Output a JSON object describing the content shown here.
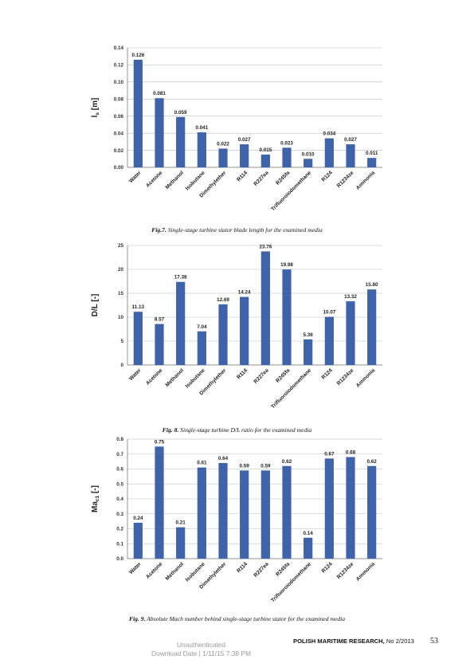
{
  "chart_data": [
    {
      "type": "bar",
      "ylabel": "l_s [m]",
      "ylim": [
        0,
        0.14
      ],
      "yticks": [
        "0.00",
        "0.02",
        "0.04",
        "0.06",
        "0.08",
        "0.10",
        "0.12",
        "0.14"
      ],
      "categories": [
        "Water",
        "Acetone",
        "Methanol",
        "Isobutane",
        "Dimethylether",
        "R114",
        "R227ea",
        "R245fa",
        "Trifluoroiodomethane",
        "R124",
        "R1234ze",
        "Ammonia"
      ],
      "values": [
        0.126,
        0.081,
        0.059,
        0.041,
        0.022,
        0.027,
        0.015,
        0.023,
        0.01,
        0.034,
        0.027,
        0.011
      ],
      "labels": [
        "0.126",
        "0.081",
        "0.059",
        "0.041",
        "0.022",
        "0.027",
        "0.015",
        "0.023",
        "0.010",
        "0.034",
        "0.027",
        "0.011"
      ],
      "bar_color": "#3f63a8",
      "grid": true,
      "caption_label": "Fig.7.",
      "caption_text": "Single-stage turbine stator blade length for the examined media"
    },
    {
      "type": "bar",
      "ylabel": "D/L [-]",
      "ylim": [
        0,
        25
      ],
      "yticks": [
        "0",
        "5",
        "10",
        "15",
        "20",
        "25"
      ],
      "categories": [
        "Water",
        "Acetone",
        "Methanol",
        "Isobutane",
        "Dimethylether",
        "R114",
        "R227ea",
        "R245fa",
        "Trifluoroiodomethane",
        "R124",
        "R1234ze",
        "Ammonia"
      ],
      "values": [
        11.13,
        8.57,
        17.38,
        7.04,
        12.69,
        14.24,
        23.76,
        19.98,
        5.36,
        10.07,
        13.32,
        15.8
      ],
      "labels": [
        "11.13",
        "8.57",
        "17.38",
        "7.04",
        "12.69",
        "14.24",
        "23.76",
        "19.98",
        "5.36",
        "10.07",
        "13.32",
        "15.80"
      ],
      "bar_color": "#3f63a8",
      "grid": true,
      "caption_label": "Fig. 8.",
      "caption_text": "Single-stage turbine D/L ratio for the examined media"
    },
    {
      "type": "bar",
      "ylabel": "Ma_c1 [-]",
      "ylim": [
        0,
        0.8
      ],
      "yticks": [
        "0.0",
        "0.1",
        "0.2",
        "0.3",
        "0.4",
        "0.5",
        "0.6",
        "0.7",
        "0.8"
      ],
      "categories": [
        "Water",
        "Acetone",
        "Methanol",
        "Isobutane",
        "Dimethylether",
        "R114",
        "R227ea",
        "R245fa",
        "Trifluoroiodomethane",
        "R124",
        "R1234ze",
        "Ammonia"
      ],
      "values": [
        0.24,
        0.75,
        0.21,
        0.61,
        0.64,
        0.59,
        0.59,
        0.62,
        0.14,
        0.67,
        0.68,
        0.62
      ],
      "labels": [
        "0.24",
        "0.75",
        "0.21",
        "0.61",
        "0.64",
        "0.59",
        "0.59",
        "0.62",
        "0.14",
        "0.67",
        "0.68",
        "0.62"
      ],
      "bar_color": "#3f63a8",
      "grid": true,
      "caption_label": "Fig. 9.",
      "caption_text": "Absolute Mach number behind single-stage turbine stator for the examined media"
    }
  ],
  "footer": {
    "journal": "POLISH MARITIME RESEARCH,",
    "issue": "No 2/2013",
    "page_number": "53"
  },
  "watermark": {
    "line1": "Unauthenticated",
    "line2": "Download Date | 1/11/15 7:38 PM"
  }
}
